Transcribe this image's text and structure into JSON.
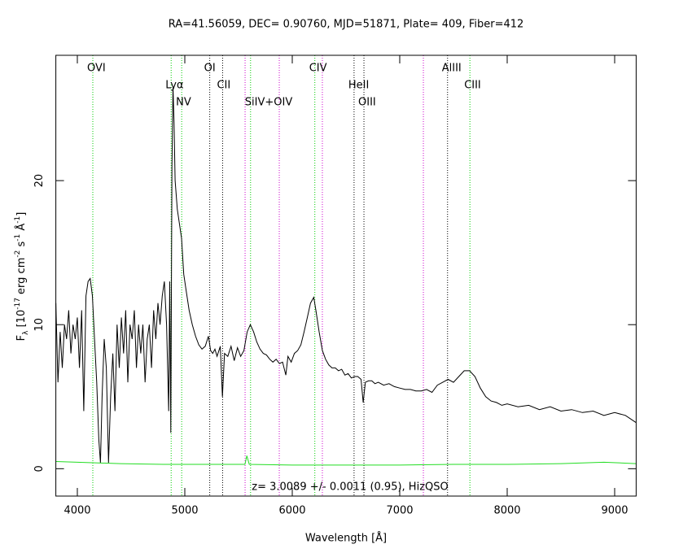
{
  "chart_data": {
    "type": "line",
    "title": "RA=41.56059, DEC= 0.90760, MJD=51871, Plate= 409, Fiber=412",
    "xlabel": "Wavelength [Å]",
    "ylabel": [
      "F",
      "λ",
      " [10",
      "-17",
      " erg cm",
      "-2",
      " s",
      "-1",
      " Å",
      "-1",
      "]"
    ],
    "annotation": "z= 3.0089 +/- 0.0011 (0.95), HizQSO",
    "xlim": [
      3800,
      9200
    ],
    "ylim": [
      -1.9,
      28.7
    ],
    "xticks": [
      4000,
      5000,
      6000,
      7000,
      8000,
      9000
    ],
    "yticks": [
      0,
      10,
      20
    ],
    "lines": [
      {
        "label": "OVI",
        "wavelength": 4144,
        "color": "#00cc00"
      },
      {
        "label": "Lyα",
        "wavelength": 4873,
        "color": "#00cc00"
      },
      {
        "label": "NV",
        "wavelength": 4971,
        "color": "#00cc00"
      },
      {
        "label": "OI",
        "wavelength": 5232,
        "color": "#000000"
      },
      {
        "label": "CII",
        "wavelength": 5352,
        "color": "#000000"
      },
      {
        "label": null,
        "wavelength": 5561,
        "color": "#cc00cc"
      },
      {
        "label": "SiIV+OIV",
        "wavelength": 5612,
        "color": "#00cc00"
      },
      {
        "label": null,
        "wavelength": 5879,
        "color": "#cc00cc"
      },
      {
        "label": "CIV",
        "wavelength": 6210,
        "color": "#00cc00"
      },
      {
        "label": null,
        "wavelength": 6280,
        "color": "#cc00cc"
      },
      {
        "label": "HeII",
        "wavelength": 6575,
        "color": "#000000"
      },
      {
        "label": "OIII",
        "wavelength": 6667,
        "color": "#000000"
      },
      {
        "label": null,
        "wavelength": 7220,
        "color": "#cc00cc"
      },
      {
        "label": "AlIII",
        "wavelength": 7445,
        "color": "#000000"
      },
      {
        "label": "CIII",
        "wavelength": 7653,
        "color": "#00cc00"
      }
    ],
    "series": [
      {
        "color": "#000000",
        "x": [
          3800,
          3820,
          3840,
          3860,
          3880,
          3900,
          3920,
          3940,
          3960,
          3980,
          4000,
          4020,
          4040,
          4060,
          4080,
          4100,
          4120,
          4140,
          4160,
          4180,
          4200,
          4215,
          4230,
          4250,
          4270,
          4290,
          4310,
          4330,
          4350,
          4370,
          4390,
          4410,
          4430,
          4450,
          4470,
          4490,
          4510,
          4530,
          4550,
          4570,
          4590,
          4610,
          4630,
          4650,
          4670,
          4690,
          4710,
          4730,
          4750,
          4770,
          4790,
          4810,
          4830,
          4850,
          4860,
          4870,
          4880,
          4890,
          4900,
          4910,
          4930,
          4950,
          4970,
          4990,
          5010,
          5040,
          5070,
          5100,
          5130,
          5160,
          5190,
          5220,
          5240,
          5260,
          5280,
          5300,
          5330,
          5350,
          5370,
          5400,
          5430,
          5460,
          5490,
          5520,
          5550,
          5580,
          5610,
          5640,
          5670,
          5700,
          5730,
          5760,
          5790,
          5820,
          5850,
          5880,
          5910,
          5940,
          5960,
          5990,
          6020,
          6050,
          6080,
          6110,
          6140,
          6170,
          6200,
          6220,
          6250,
          6280,
          6310,
          6340,
          6370,
          6400,
          6430,
          6460,
          6490,
          6520,
          6550,
          6580,
          6610,
          6640,
          6660,
          6680,
          6710,
          6740,
          6770,
          6800,
          6850,
          6900,
          6950,
          7000,
          7050,
          7100,
          7150,
          7200,
          7250,
          7300,
          7350,
          7400,
          7450,
          7500,
          7550,
          7600,
          7650,
          7700,
          7750,
          7800,
          7850,
          7900,
          7950,
          8000,
          8100,
          8200,
          8300,
          8400,
          8500,
          8600,
          8700,
          8800,
          8900,
          9000,
          9100,
          9200
        ],
        "values": [
          11.5,
          6,
          9.5,
          7,
          10,
          9,
          11,
          8,
          10,
          9,
          10.5,
          7,
          11,
          4,
          12,
          13,
          13.2,
          12,
          9,
          6,
          2,
          0.4,
          5,
          9,
          7,
          0.4,
          5,
          8,
          4,
          10,
          7,
          10.5,
          8,
          11,
          6,
          10,
          9,
          11,
          7,
          10,
          8,
          10,
          6,
          9,
          10,
          7,
          11,
          9,
          11.5,
          10,
          12,
          13,
          10,
          4,
          13,
          2.5,
          21,
          26.5,
          24,
          20,
          18,
          17,
          16,
          13.5,
          12.5,
          11,
          10,
          9.2,
          8.6,
          8.3,
          8.5,
          9.2,
          8.2,
          8.0,
          8.3,
          7.8,
          8.5,
          5,
          8,
          7.8,
          8.5,
          7.5,
          8.4,
          7.8,
          8.2,
          9.5,
          10,
          9.5,
          8.8,
          8.3,
          8.0,
          7.9,
          7.6,
          7.4,
          7.6,
          7.3,
          7.4,
          6.5,
          7.8,
          7.4,
          8,
          8.2,
          8.6,
          9.5,
          10.5,
          11.5,
          11.9,
          11,
          9.5,
          8.2,
          7.6,
          7.2,
          7.0,
          7.0,
          6.8,
          6.9,
          6.5,
          6.6,
          6.3,
          6.4,
          6.4,
          6.2,
          4.6,
          6.0,
          6.1,
          6.1,
          5.9,
          6.0,
          5.8,
          5.9,
          5.7,
          5.6,
          5.5,
          5.5,
          5.4,
          5.4,
          5.5,
          5.3,
          5.8,
          6.0,
          6.2,
          6.0,
          6.4,
          6.8,
          6.8,
          6.4,
          5.6,
          5.0,
          4.7,
          4.6,
          4.4,
          4.5,
          4.3,
          4.4,
          4.1,
          4.3,
          4.0,
          4.1,
          3.9,
          4.0,
          3.7,
          3.9,
          3.7,
          3.2
        ]
      },
      {
        "color": "#22dd22",
        "x": [
          3800,
          4000,
          4400,
          4800,
          5200,
          5560,
          5577,
          5600,
          6000,
          6500,
          7000,
          7500,
          8000,
          8500,
          8900,
          9200
        ],
        "values": [
          0.5,
          0.45,
          0.35,
          0.3,
          0.3,
          0.3,
          0.9,
          0.3,
          0.25,
          0.25,
          0.25,
          0.3,
          0.3,
          0.35,
          0.45,
          0.35
        ]
      }
    ]
  }
}
